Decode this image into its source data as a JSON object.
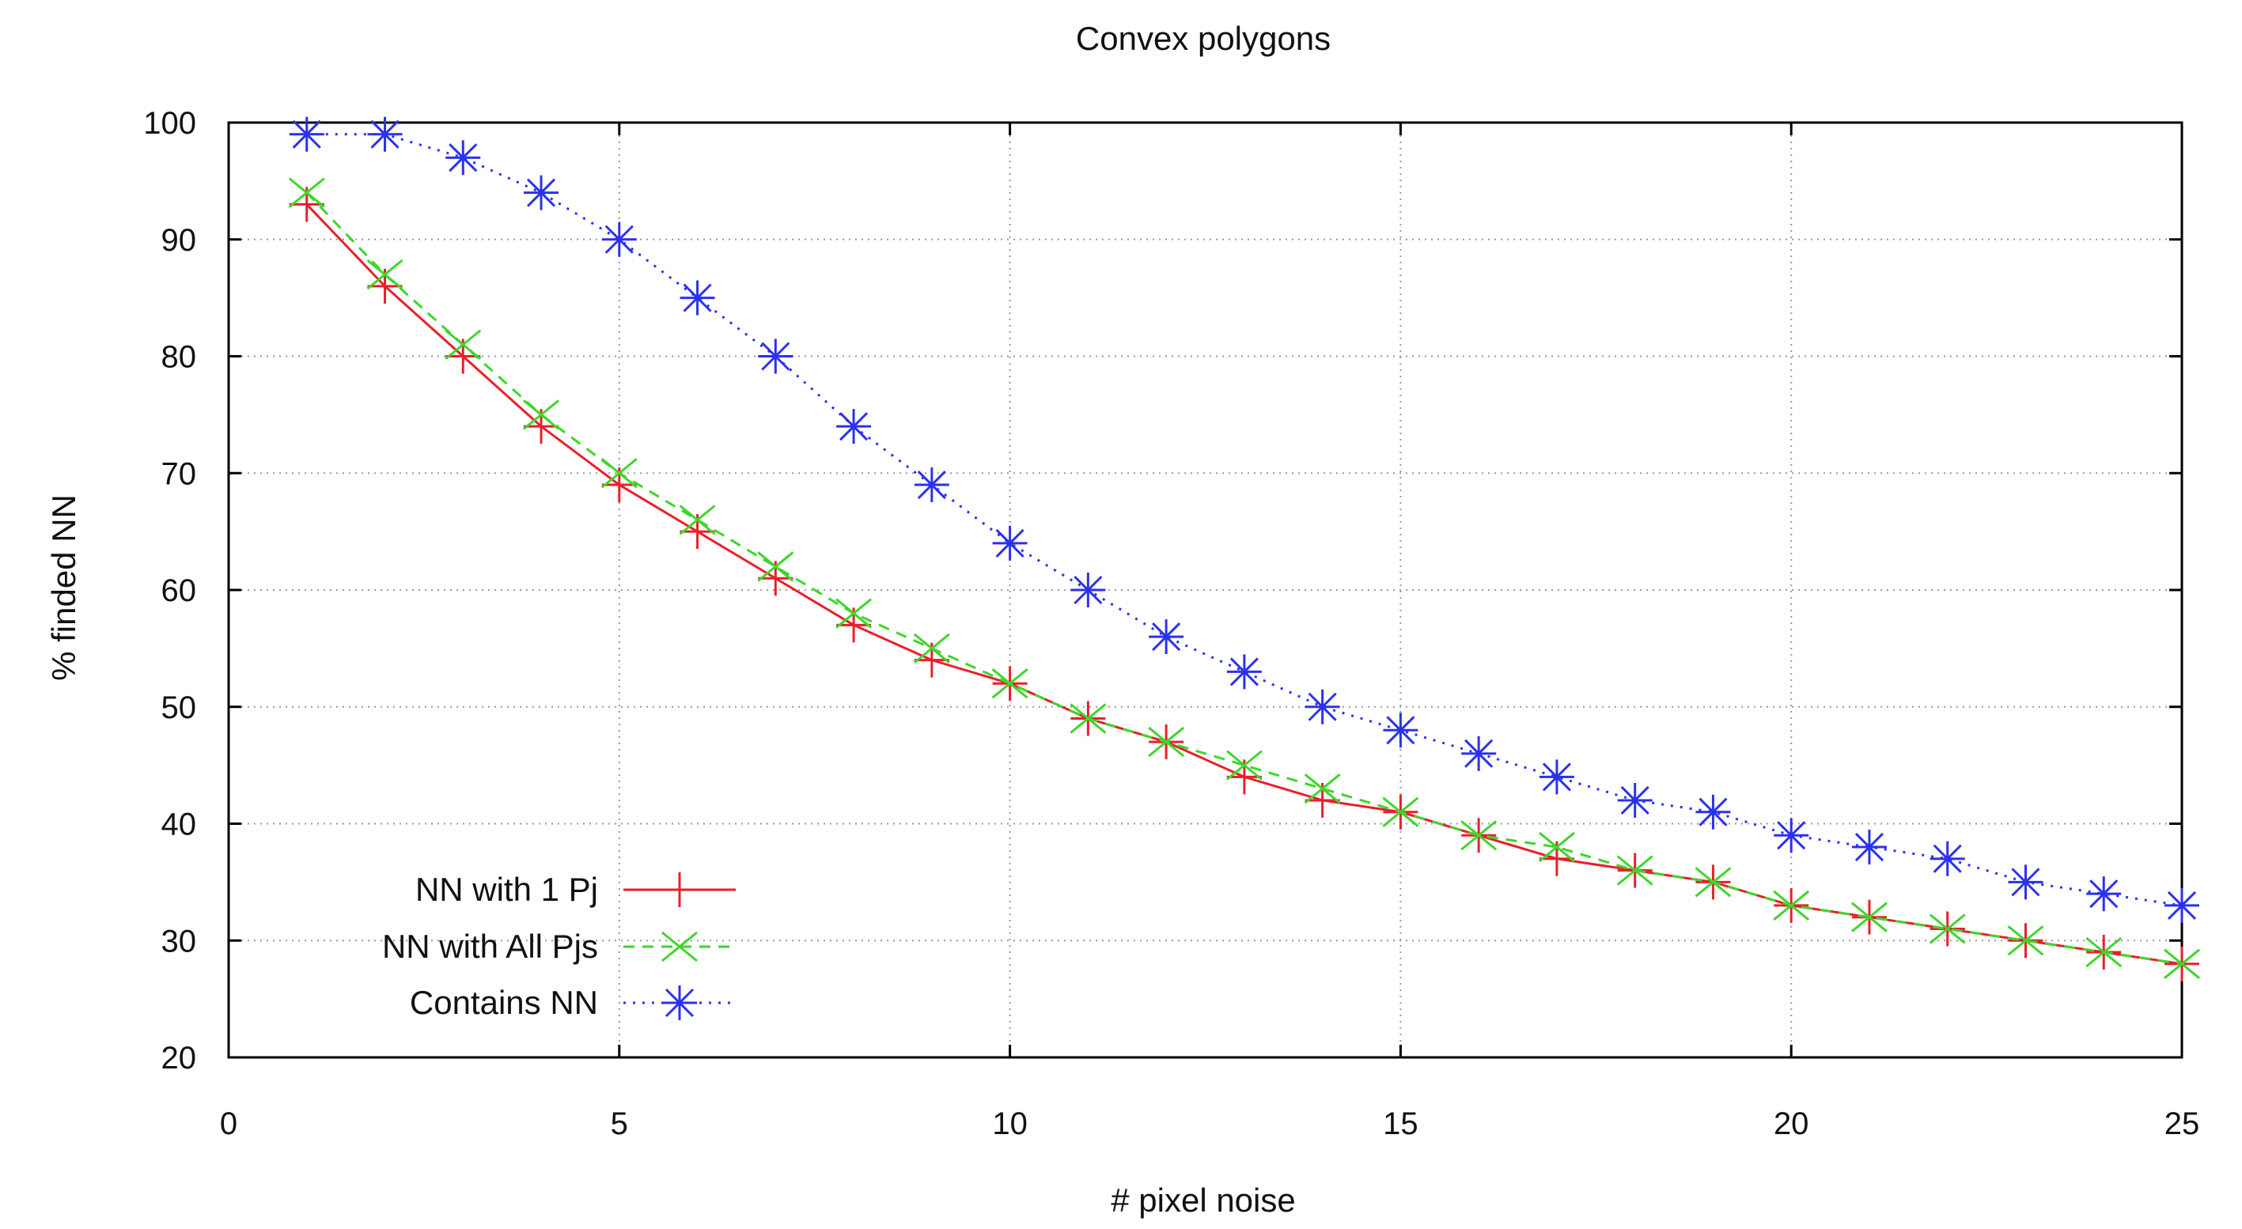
{
  "chart_data": {
    "type": "line",
    "title": "Convex polygons",
    "xlabel": "# pixel noise",
    "ylabel": "% finded NN",
    "xlim": [
      0,
      25
    ],
    "ylim": [
      20,
      100
    ],
    "x_ticks": [
      "0",
      "5",
      "10",
      "15",
      "20",
      "25"
    ],
    "y_ticks": [
      "20",
      "30",
      "40",
      "50",
      "60",
      "70",
      "80",
      "90",
      "100"
    ],
    "grid": true,
    "legend_position": "bottom-left",
    "x": [
      1,
      2,
      3,
      4,
      5,
      6,
      7,
      8,
      9,
      10,
      11,
      12,
      13,
      14,
      15,
      16,
      17,
      18,
      19,
      20,
      21,
      22,
      23,
      24,
      25
    ],
    "series": [
      {
        "name": "NN with 1 Pj",
        "color": "#e8202a",
        "line": "solid",
        "marker": "plus",
        "values": [
          93,
          86,
          80,
          74,
          69,
          65,
          61,
          57,
          54,
          52,
          49,
          47,
          44,
          42,
          41,
          39,
          37,
          36,
          35,
          33,
          32,
          31,
          30,
          29,
          28
        ]
      },
      {
        "name": "NN with All Pjs",
        "color": "#3fd62b",
        "line": "dashed",
        "marker": "x",
        "values": [
          94,
          87,
          81,
          75,
          70,
          66,
          62,
          58,
          55,
          52,
          49,
          47,
          45,
          43,
          41,
          39,
          38,
          36,
          35,
          33,
          32,
          31,
          30,
          29,
          28
        ]
      },
      {
        "name": "Contains NN",
        "color": "#2b31ee",
        "line": "dotted",
        "marker": "star",
        "values": [
          99,
          99,
          97,
          94,
          90,
          85,
          80,
          74,
          69,
          64,
          60,
          56,
          53,
          50,
          48,
          46,
          44,
          42,
          41,
          39,
          38,
          37,
          35,
          34,
          33
        ]
      }
    ]
  }
}
